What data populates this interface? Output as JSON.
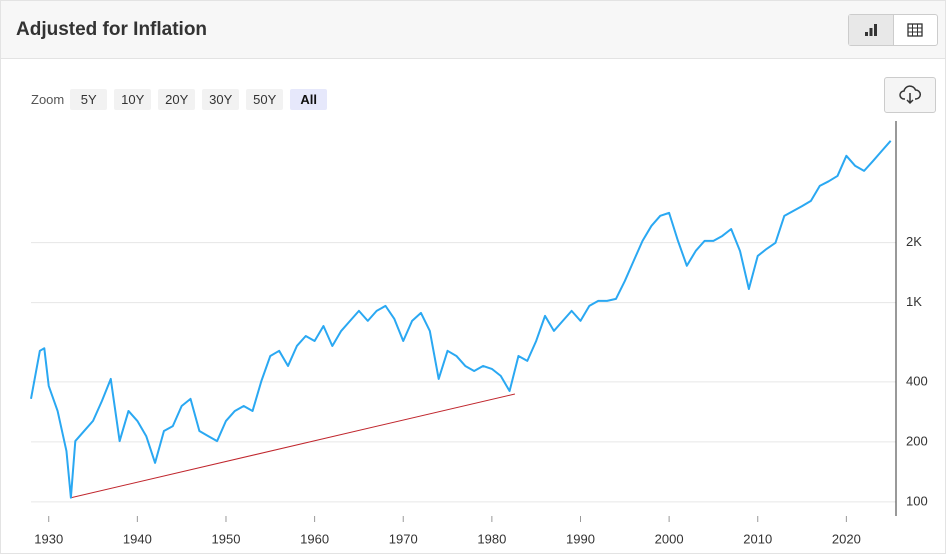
{
  "header": {
    "title": "Adjusted for Inflation"
  },
  "zoom": {
    "label": "Zoom",
    "options": [
      "5Y",
      "10Y",
      "20Y",
      "30Y",
      "50Y",
      "All"
    ]
  },
  "chart_data": {
    "type": "line",
    "log_scale": true,
    "grid": true,
    "color": "#2aa8f2",
    "x": [
      1928,
      1929,
      1929.5,
      1930,
      1931,
      1932,
      1932.5,
      1933,
      1934,
      1935,
      1936,
      1937,
      1938,
      1939,
      1940,
      1941,
      1942,
      1943,
      1944,
      1945,
      1946,
      1947,
      1948,
      1949,
      1950,
      1951,
      1952,
      1953,
      1954,
      1955,
      1956,
      1957,
      1958,
      1959,
      1960,
      1961,
      1962,
      1963,
      1964,
      1965,
      1966,
      1967,
      1968,
      1969,
      1970,
      1971,
      1972,
      1973,
      1974,
      1975,
      1976,
      1977,
      1978,
      1979,
      1980,
      1981,
      1982,
      1983,
      1984,
      1985,
      1986,
      1987,
      1988,
      1989,
      1990,
      1991,
      1992,
      1993,
      1994,
      1995,
      1996,
      1997,
      1998,
      1999,
      2000,
      2001,
      2002,
      2003,
      2004,
      2005,
      2006,
      2007,
      2008,
      2009,
      2010,
      2011,
      2012,
      2013,
      2014,
      2015,
      2016,
      2017,
      2018,
      2019,
      2020,
      2021,
      2022,
      2023,
      2024,
      2025
    ],
    "values": [
      329,
      573,
      590,
      382,
      286,
      180,
      105,
      202,
      227,
      255,
      321,
      414,
      202,
      286,
      255,
      214,
      157,
      227,
      240,
      303,
      329,
      227,
      214,
      202,
      255,
      286,
      303,
      286,
      405,
      540,
      573,
      481,
      606,
      680,
      642,
      763,
      606,
      721,
      810,
      909,
      810,
      909,
      963,
      828,
      642,
      810,
      888,
      721,
      414,
      573,
      540,
      481,
      454,
      481,
      465,
      429,
      360,
      540,
      510,
      642,
      858,
      721,
      810,
      909,
      810,
      963,
      1020,
      1020,
      1044,
      1283,
      1620,
      2040,
      2425,
      2725,
      2820,
      2040,
      1530,
      1816,
      2040,
      2040,
      2160,
      2340,
      1816,
      1170,
      1715,
      1860,
      1995,
      2725,
      2880,
      3050,
      3240,
      3850,
      4060,
      4320,
      5450,
      4850,
      4580,
      5130,
      5770,
      6480
    ],
    "trend": {
      "x": [
        1932.5,
        1982.6
      ],
      "values": [
        105,
        348
      ],
      "color": "#c0262d"
    },
    "xlim": [
      1928,
      2025.6
    ],
    "xticks": [
      1930,
      1940,
      1950,
      1960,
      1970,
      1980,
      1990,
      2000,
      2010,
      2020
    ],
    "ylim": [
      85,
      8150
    ],
    "yticks": [
      100,
      200,
      400,
      {
        "value": 1000,
        "label": "1K"
      },
      {
        "value": 2000,
        "label": "2K"
      }
    ]
  }
}
